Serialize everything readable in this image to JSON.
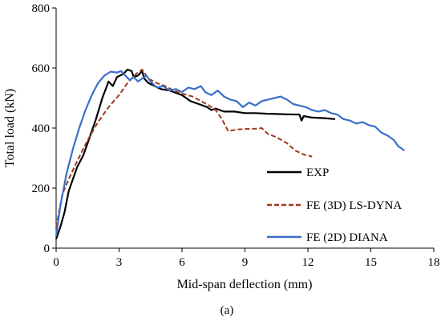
{
  "colors": {
    "exp": "#000000",
    "lsdyna": "#a0391e",
    "diana": "#3a6fc7",
    "axis": "#000000"
  },
  "chart_data": {
    "type": "line",
    "title": "",
    "xlabel": "Mid-span deflection (mm)",
    "ylabel": "Total load (kN)",
    "panel_label": "(a)",
    "xlim": [
      0,
      18
    ],
    "ylim": [
      0,
      800
    ],
    "xticks": [
      0,
      3,
      6,
      9,
      12,
      15,
      18
    ],
    "yticks": [
      0,
      200,
      400,
      600,
      800
    ],
    "grid": false,
    "legend_position": "bottom-right",
    "series": [
      {
        "name": "EXP",
        "style": "solid",
        "color": "#000000",
        "points": [
          [
            0,
            30
          ],
          [
            0.2,
            70
          ],
          [
            0.4,
            120
          ],
          [
            0.6,
            190
          ],
          [
            0.8,
            230
          ],
          [
            1.0,
            270
          ],
          [
            1.3,
            310
          ],
          [
            1.6,
            370
          ],
          [
            1.9,
            430
          ],
          [
            2.2,
            500
          ],
          [
            2.5,
            555
          ],
          [
            2.7,
            540
          ],
          [
            2.9,
            570
          ],
          [
            3.2,
            580
          ],
          [
            3.4,
            595
          ],
          [
            3.6,
            590
          ],
          [
            3.7,
            570
          ],
          [
            3.9,
            575
          ],
          [
            4.1,
            590
          ],
          [
            4.2,
            565
          ],
          [
            4.4,
            550
          ],
          [
            4.7,
            540
          ],
          [
            5.0,
            530
          ],
          [
            5.4,
            525
          ],
          [
            5.8,
            515
          ],
          [
            6.0,
            510
          ],
          [
            6.4,
            490
          ],
          [
            6.8,
            480
          ],
          [
            7.2,
            470
          ],
          [
            7.4,
            460
          ],
          [
            7.6,
            465
          ],
          [
            8.0,
            455
          ],
          [
            8.5,
            455
          ],
          [
            9.0,
            450
          ],
          [
            9.5,
            450
          ],
          [
            10.0,
            448
          ],
          [
            10.5,
            447
          ],
          [
            11.0,
            446
          ],
          [
            11.6,
            445
          ],
          [
            11.7,
            425
          ],
          [
            11.8,
            440
          ],
          [
            12.2,
            435
          ],
          [
            12.8,
            433
          ],
          [
            13.3,
            430
          ]
        ]
      },
      {
        "name": "FE (3D) LS-DYNA",
        "style": "dashed",
        "color": "#a0391e",
        "points": [
          [
            0,
            70
          ],
          [
            0.3,
            180
          ],
          [
            0.6,
            230
          ],
          [
            1.0,
            290
          ],
          [
            1.5,
            360
          ],
          [
            2.0,
            420
          ],
          [
            2.5,
            470
          ],
          [
            3.0,
            510
          ],
          [
            3.4,
            550
          ],
          [
            3.8,
            580
          ],
          [
            4.1,
            595
          ],
          [
            4.4,
            565
          ],
          [
            4.8,
            550
          ],
          [
            5.2,
            540
          ],
          [
            5.6,
            525
          ],
          [
            6.0,
            515
          ],
          [
            6.5,
            505
          ],
          [
            6.9,
            490
          ],
          [
            7.3,
            475
          ],
          [
            7.6,
            460
          ],
          [
            7.9,
            430
          ],
          [
            8.2,
            390
          ],
          [
            8.6,
            395
          ],
          [
            9.0,
            397
          ],
          [
            9.5,
            398
          ],
          [
            9.8,
            400
          ],
          [
            10.1,
            380
          ],
          [
            10.5,
            370
          ],
          [
            11.0,
            350
          ],
          [
            11.4,
            325
          ],
          [
            11.8,
            312
          ],
          [
            12.2,
            305
          ]
        ]
      },
      {
        "name": "FE (2D) DIANA",
        "style": "solid",
        "color": "#3a6fc7",
        "points": [
          [
            0,
            40
          ],
          [
            0.2,
            140
          ],
          [
            0.5,
            250
          ],
          [
            0.8,
            330
          ],
          [
            1.1,
            400
          ],
          [
            1.4,
            460
          ],
          [
            1.7,
            510
          ],
          [
            2.0,
            550
          ],
          [
            2.3,
            575
          ],
          [
            2.6,
            588
          ],
          [
            2.9,
            585
          ],
          [
            3.1,
            590
          ],
          [
            3.3,
            575
          ],
          [
            3.5,
            560
          ],
          [
            3.7,
            570
          ],
          [
            3.9,
            555
          ],
          [
            4.1,
            565
          ],
          [
            4.3,
            575
          ],
          [
            4.5,
            555
          ],
          [
            4.8,
            535
          ],
          [
            5.1,
            540
          ],
          [
            5.4,
            525
          ],
          [
            5.7,
            530
          ],
          [
            6.0,
            520
          ],
          [
            6.3,
            535
          ],
          [
            6.6,
            530
          ],
          [
            6.9,
            540
          ],
          [
            7.1,
            520
          ],
          [
            7.4,
            510
          ],
          [
            7.7,
            525
          ],
          [
            8.0,
            505
          ],
          [
            8.3,
            495
          ],
          [
            8.6,
            490
          ],
          [
            8.9,
            470
          ],
          [
            9.2,
            485
          ],
          [
            9.5,
            475
          ],
          [
            9.8,
            490
          ],
          [
            10.1,
            495
          ],
          [
            10.4,
            500
          ],
          [
            10.7,
            505
          ],
          [
            11.0,
            495
          ],
          [
            11.3,
            480
          ],
          [
            11.6,
            475
          ],
          [
            11.9,
            470
          ],
          [
            12.2,
            460
          ],
          [
            12.5,
            455
          ],
          [
            12.8,
            460
          ],
          [
            13.1,
            450
          ],
          [
            13.4,
            445
          ],
          [
            13.7,
            430
          ],
          [
            14.0,
            425
          ],
          [
            14.3,
            415
          ],
          [
            14.6,
            420
          ],
          [
            14.9,
            410
          ],
          [
            15.2,
            405
          ],
          [
            15.5,
            385
          ],
          [
            15.8,
            375
          ],
          [
            16.1,
            360
          ],
          [
            16.3,
            340
          ],
          [
            16.6,
            325
          ]
        ]
      }
    ]
  }
}
